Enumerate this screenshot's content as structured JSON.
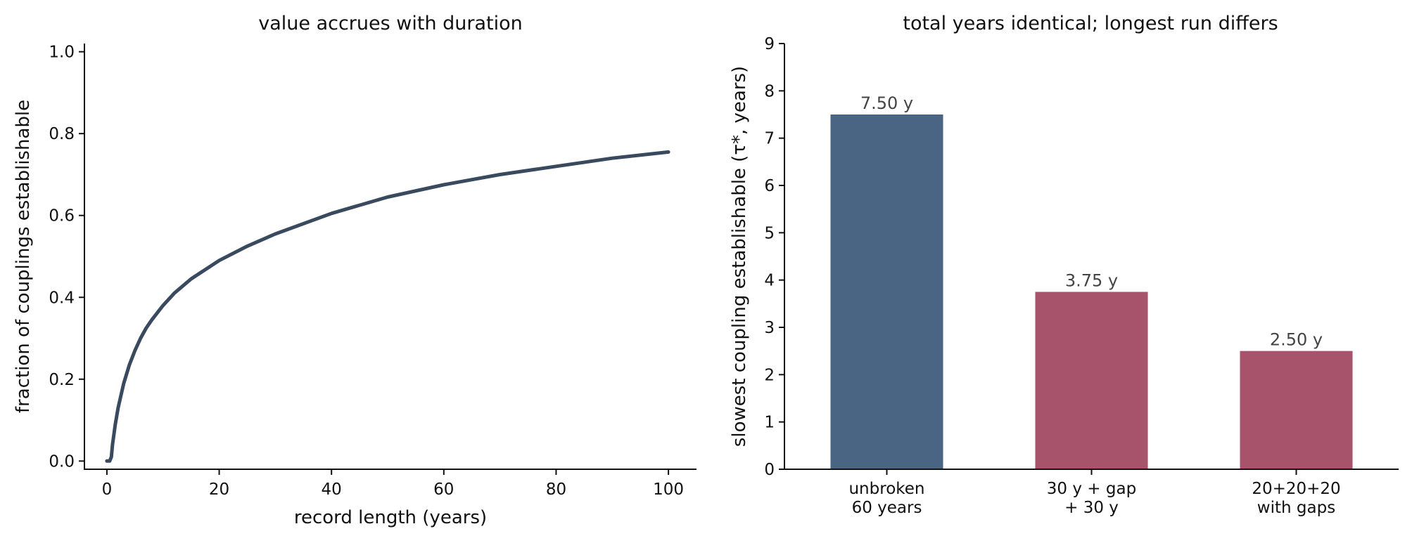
{
  "chart_data": [
    {
      "type": "line",
      "title": "value accrues with duration",
      "xlabel": "record length (years)",
      "ylabel": "fraction of couplings establishable",
      "xlim": [
        -4,
        105
      ],
      "ylim": [
        -0.02,
        1.02
      ],
      "xticks": [
        0,
        20,
        40,
        60,
        80,
        100
      ],
      "yticks": [
        "0.0",
        "0.2",
        "0.4",
        "0.6",
        "0.8",
        "1.0"
      ],
      "color": "#3a4a5e",
      "grid": false,
      "series": [
        {
          "x": [
            0,
            0.5,
            0.8,
            1,
            1.5,
            2,
            3,
            4,
            5,
            6,
            7,
            8,
            10,
            12,
            15,
            20,
            25,
            30,
            40,
            50,
            60,
            70,
            80,
            90,
            100
          ],
          "y": [
            0.0,
            0.0,
            0.01,
            0.04,
            0.09,
            0.13,
            0.19,
            0.235,
            0.27,
            0.3,
            0.325,
            0.345,
            0.38,
            0.41,
            0.445,
            0.49,
            0.525,
            0.555,
            0.605,
            0.645,
            0.675,
            0.7,
            0.72,
            0.74,
            0.755
          ]
        }
      ]
    },
    {
      "type": "bar",
      "title": "total years identical; longest run differs",
      "xlabel": "",
      "ylabel": "slowest coupling establishable (τ*, years)",
      "ylim": [
        0,
        9
      ],
      "yticks": [
        0,
        1,
        2,
        3,
        4,
        5,
        6,
        7,
        8,
        9
      ],
      "grid": false,
      "categories": [
        [
          "unbroken",
          "60 years"
        ],
        [
          "30 y + gap",
          "+ 30 y"
        ],
        [
          "20+20+20",
          "with gaps"
        ]
      ],
      "values": [
        7.5,
        3.75,
        2.5
      ],
      "value_labels": [
        "7.50 y",
        "3.75 y",
        "2.50 y"
      ],
      "colors": [
        "#4a6583",
        "#a8536c",
        "#a8536c"
      ]
    }
  ]
}
